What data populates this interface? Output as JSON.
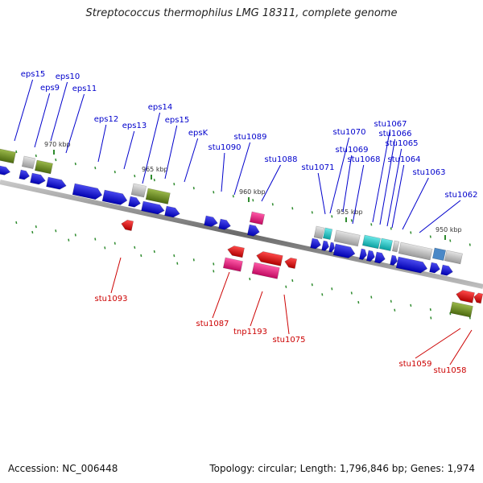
{
  "title": "Streptococcus thermophilus LMG 18311, complete genome",
  "footer": {
    "accession": "Accession: NC_006448",
    "stats": "Topology: circular; Length: 1,796,846 bp; Genes: 1,974"
  },
  "colors": {
    "forward_label": "#0000cc",
    "reverse_label": "#cc0000",
    "cds_forward": "#1a1adb",
    "cds_reverse": "#e81010",
    "rna_pink": "#e6187e",
    "olive": "#6b8c1e",
    "gray": "#b8b8b8",
    "cyan": "#19c8c8",
    "steelblue": "#4a88c7",
    "tick": "#2e8b2e",
    "backbone": "#777777"
  },
  "ticks": [
    {
      "label": "970 kbp"
    },
    {
      "label": "965 kbp"
    },
    {
      "label": "960 kbp"
    },
    {
      "label": "955 kbp"
    },
    {
      "label": "950 kbp"
    }
  ],
  "forward_labels": [
    {
      "text": "eps15"
    },
    {
      "text": "eps9"
    },
    {
      "text": "eps10"
    },
    {
      "text": "eps11"
    },
    {
      "text": "eps12"
    },
    {
      "text": "eps13"
    },
    {
      "text": "eps14"
    },
    {
      "text": "eps15"
    },
    {
      "text": "epsK"
    },
    {
      "text": "stu1090"
    },
    {
      "text": "stu1089"
    },
    {
      "text": "stu1088"
    },
    {
      "text": "stu1071"
    },
    {
      "text": "stu1070"
    },
    {
      "text": "stu1069"
    },
    {
      "text": "stu1068"
    },
    {
      "text": "stu1067"
    },
    {
      "text": "stu1066"
    },
    {
      "text": "stu1065"
    },
    {
      "text": "stu1064"
    },
    {
      "text": "stu1063"
    },
    {
      "text": "stu1062"
    }
  ],
  "reverse_labels": [
    {
      "text": "stu1093"
    },
    {
      "text": "stu1087"
    },
    {
      "text": "tnp1193"
    },
    {
      "text": "stu1075"
    },
    {
      "text": "stu1059"
    },
    {
      "text": "stu1058"
    }
  ]
}
